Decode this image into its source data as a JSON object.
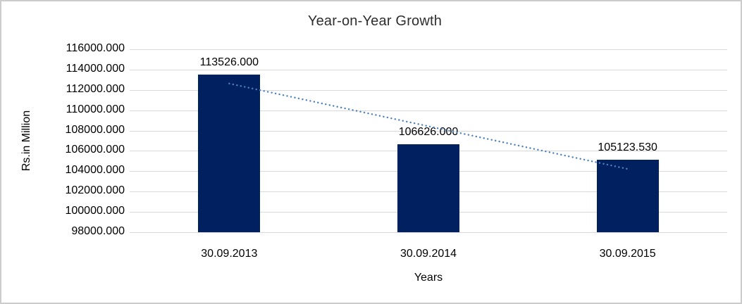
{
  "chart_data": {
    "type": "bar",
    "title": "Year-on-Year Growth",
    "xlabel": "Years",
    "ylabel": "Rs.in Million",
    "categories": [
      "30.09.2013",
      "30.09.2014",
      "30.09.2015"
    ],
    "values": [
      113526.0,
      106626.0,
      105123.53
    ],
    "data_labels": [
      "113526.000",
      "106626.000",
      "105123.530"
    ],
    "y_ticks": [
      "116000.000",
      "114000.000",
      "112000.000",
      "110000.000",
      "108000.000",
      "106000.000",
      "104000.000",
      "102000.000",
      "100000.000",
      "98000.000"
    ],
    "ylim": [
      98000,
      116000
    ],
    "y_tick_interval": 2000,
    "grid": true,
    "legend": "none",
    "bar_color": "#002060",
    "gridline_color": "#d9d9d9",
    "trendline": {
      "type": "linear",
      "style": "dotted",
      "color": "#4f81bd"
    }
  }
}
